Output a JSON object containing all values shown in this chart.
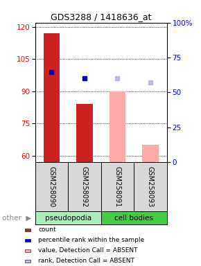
{
  "title": "GDS3288 / 1418636_at",
  "samples": [
    "GSM258090",
    "GSM258092",
    "GSM258091",
    "GSM258093"
  ],
  "bar_values": [
    117,
    84,
    90,
    65
  ],
  "bar_colors": [
    "#cc2222",
    "#cc2222",
    "#ffaaaa",
    "#ffaaaa"
  ],
  "dot_values": [
    99,
    96,
    96,
    94
  ],
  "dot_colors": [
    "#0000cc",
    "#0000cc",
    "#bbbbdd",
    "#bbbbdd"
  ],
  "ylim_left": [
    57,
    122
  ],
  "yticks_left": [
    60,
    75,
    90,
    105,
    120
  ],
  "yticks_right": [
    0,
    25,
    50,
    75,
    100
  ],
  "ytick_labels_right": [
    "0",
    "25",
    "50",
    "75",
    "100%"
  ],
  "group_colors": {
    "pseudopodia": "#aaeebb",
    "cell bodies": "#44cc44"
  },
  "legend_items": [
    {
      "label": "count",
      "color": "#cc2222"
    },
    {
      "label": "percentile rank within the sample",
      "color": "#0000cc"
    },
    {
      "label": "value, Detection Call = ABSENT",
      "color": "#ffaaaa"
    },
    {
      "label": "rank, Detection Call = ABSENT",
      "color": "#bbbbdd"
    }
  ],
  "title_fontsize": 9,
  "bar_width": 0.5
}
